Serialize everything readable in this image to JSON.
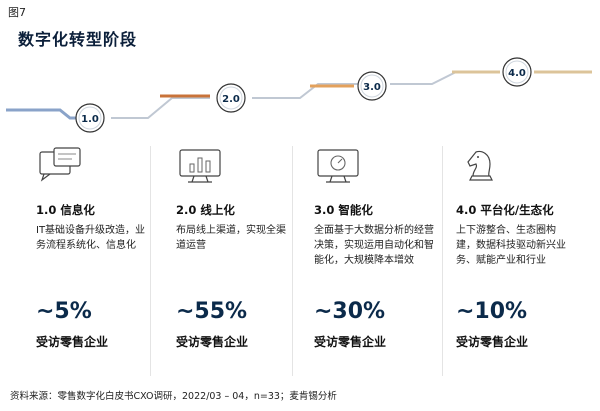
{
  "figure_label": "图7",
  "title": "数字化转型阶段",
  "stages": [
    {
      "level": "1.0",
      "title": "1.0 信息化",
      "icon": "chat-screen-icon",
      "description": "IT基础设备升级改造，业务流程系统化、信息化",
      "percent": "~5%",
      "percent_label": "受访零售企业",
      "color": "#8aa3c9"
    },
    {
      "level": "2.0",
      "title": "2.0 线上化",
      "icon": "bar-chart-monitor-icon",
      "description": "布局线上渠道，实现全渠道运营",
      "percent": "~55%",
      "percent_label": "受访零售企业",
      "color": "#c9733a"
    },
    {
      "level": "3.0",
      "title": "3.0 智能化",
      "icon": "gauge-monitor-icon",
      "description": "全面基于大数据分析的经营决策，实现运用自动化和智能化，大规模降本增效",
      "percent": "~30%",
      "percent_label": "受访零售企业",
      "color": "#e3a15c"
    },
    {
      "level": "4.0",
      "title": "4.0 平台化/生态化",
      "icon": "chess-knight-icon",
      "description": "上下游整合、生态圈构建，数据科技驱动新兴业务、赋能产业和行业",
      "percent": "~10%",
      "percent_label": "受访零售企业",
      "color": "#dcc49a"
    }
  ],
  "source": "资料来源：零售数字化白皮书CXO调研，2022/03 – 04，n=33；麦肯锡分析"
}
